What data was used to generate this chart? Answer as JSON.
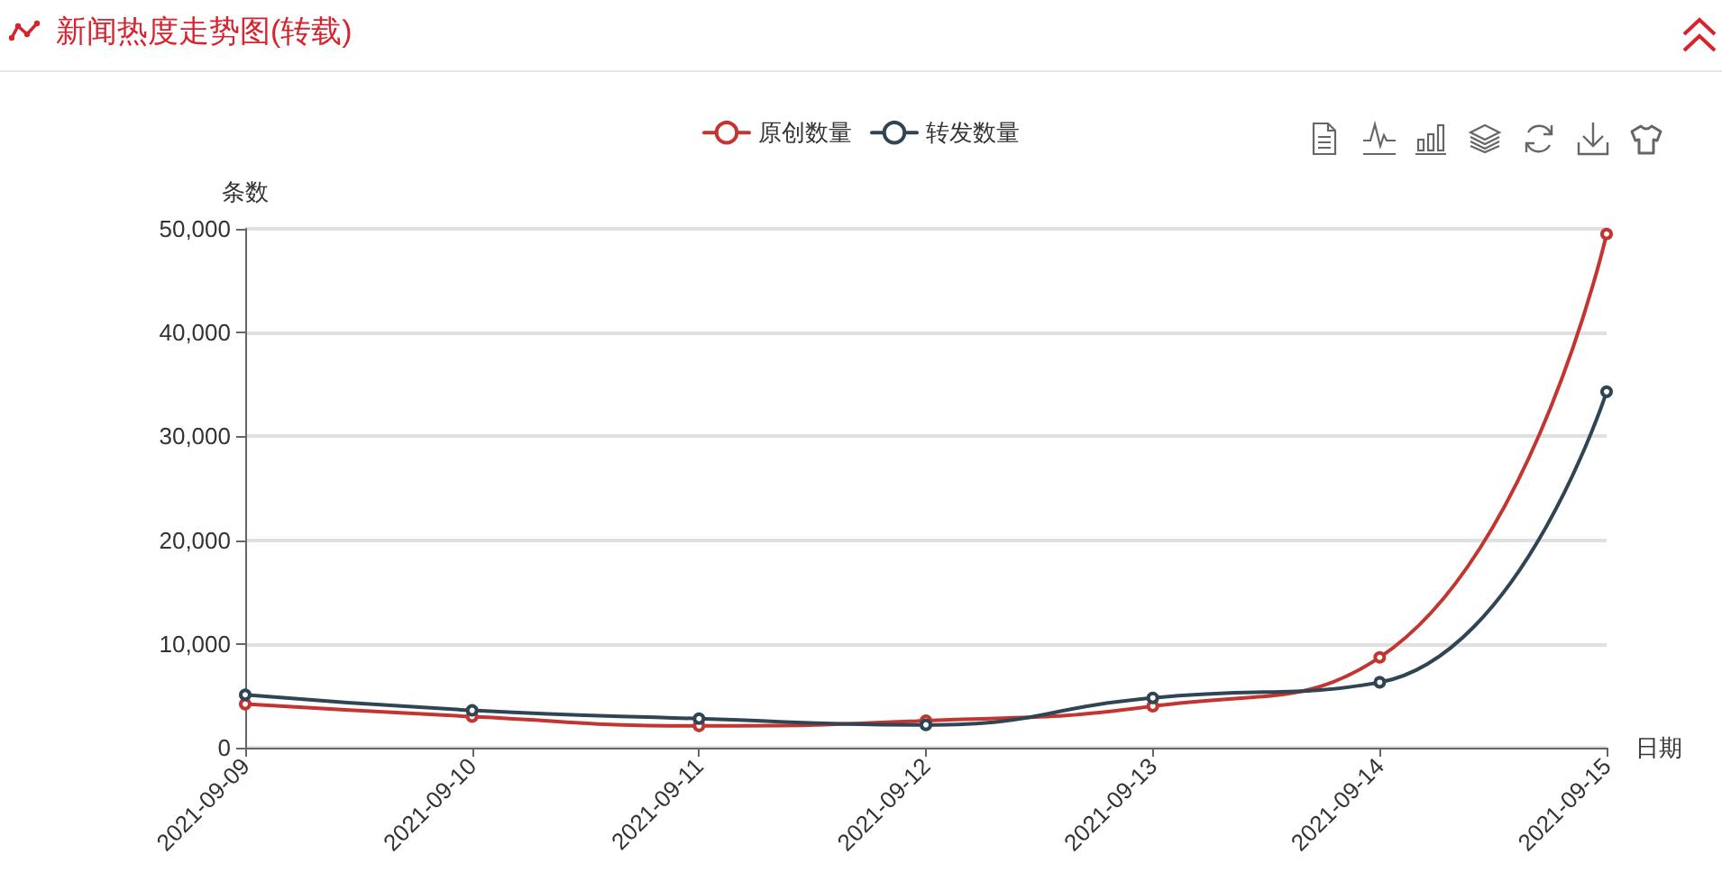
{
  "chart_data": {
    "type": "line",
    "title": "新闻热度走势图(转载)",
    "xlabel": "日期",
    "ylabel": "条数",
    "categories": [
      "2021-09-09",
      "2021-09-10",
      "2021-09-11",
      "2021-09-12",
      "2021-09-13",
      "2021-09-14",
      "2021-09-15"
    ],
    "series": [
      {
        "name": "原创数量",
        "color": "#c23531",
        "values": [
          4200,
          3000,
          2100,
          2600,
          4000,
          8700,
          49500
        ]
      },
      {
        "name": "转发数量",
        "color": "#2f4554",
        "values": [
          5100,
          3600,
          2800,
          2200,
          4800,
          6300,
          34300
        ]
      }
    ],
    "ylim": [
      0,
      50000
    ],
    "yticks": [
      0,
      {
        "value": 10000,
        "label": "10,000"
      },
      {
        "value": 20000,
        "label": "20,000"
      },
      {
        "value": 30000,
        "label": "30,000"
      },
      {
        "value": 40000,
        "label": "40,000"
      },
      {
        "value": 50000,
        "label": "50,000"
      }
    ],
    "grid": "y",
    "legend": "top",
    "marker": "circle",
    "line_style": "solid"
  }
}
